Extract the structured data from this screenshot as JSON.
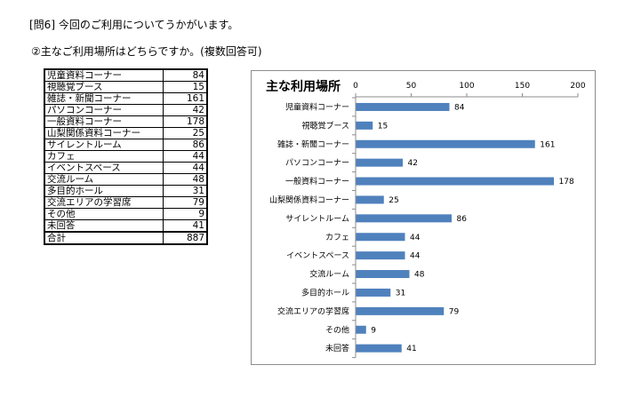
{
  "header": {
    "question": "[問6] 今回のご利用についてうかがいます。",
    "subquestion": "②主なご利用場所はどちらですか。(複数回答可)"
  },
  "table": {
    "rows": [
      {
        "label": "児童資料コーナー",
        "value": "84"
      },
      {
        "label": "視聴覚ブース",
        "value": "15"
      },
      {
        "label": "雑誌・新聞コーナー",
        "value": "161"
      },
      {
        "label": "パソコンコーナー",
        "value": "42"
      },
      {
        "label": "一般資料コーナー",
        "value": "178"
      },
      {
        "label": "山梨関係資料コーナー",
        "value": "25"
      },
      {
        "label": "サイレントルーム",
        "value": "86"
      },
      {
        "label": "カフェ",
        "value": "44"
      },
      {
        "label": "イベントスペース",
        "value": "44"
      },
      {
        "label": "交流ルーム",
        "value": "48"
      },
      {
        "label": "多目的ホール",
        "value": "31"
      },
      {
        "label": "交流エリアの学習席",
        "value": "79"
      },
      {
        "label": "その他",
        "value": "9"
      },
      {
        "label": "未回答",
        "value": "41"
      }
    ],
    "total_label": "合計",
    "total_value": "887"
  },
  "chart_data": {
    "type": "bar",
    "orientation": "horizontal",
    "title": "主な利用場所",
    "categories": [
      "児童資料コーナー",
      "視聴覚ブース",
      "雑誌・新聞コーナー",
      "パソコンコーナー",
      "一般資料コーナー",
      "山梨関係資料コーナー",
      "サイレントルーム",
      "カフェ",
      "イベントスペース",
      "交流ルーム",
      "多目的ホール",
      "交流エリアの学習席",
      "その他",
      "未回答"
    ],
    "values": [
      84,
      15,
      161,
      42,
      178,
      25,
      86,
      44,
      44,
      48,
      31,
      79,
      9,
      41
    ],
    "xlim": [
      0,
      200
    ],
    "ticks": [
      0,
      50,
      100,
      150,
      200
    ],
    "axis_position": "top",
    "gridlines": false,
    "legend": false,
    "data_labels": true,
    "bar_color": "#4f81bd"
  }
}
